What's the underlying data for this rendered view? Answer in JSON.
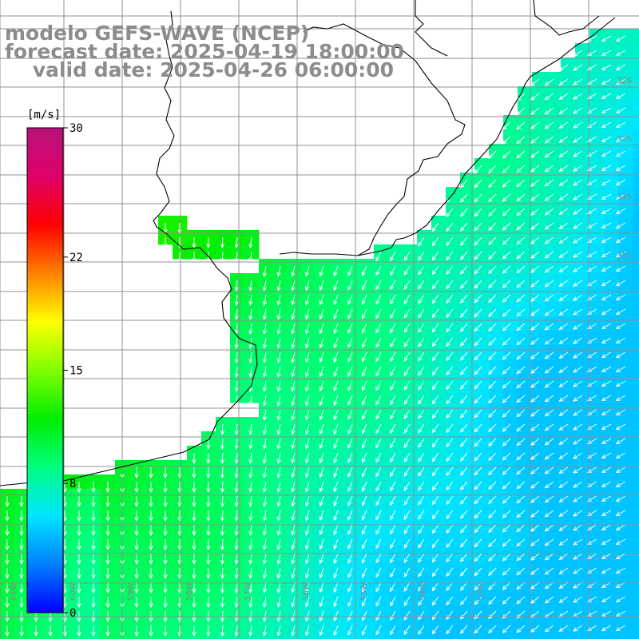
{
  "title": {
    "line1": "modelo GEFS-WAVE (NCEP)",
    "line2": "forecast date: 2025-04-19 18:00:00",
    "line3": "    valid date: 2025-04-26 06:00:00"
  },
  "colorbar": {
    "unit": "[m/s]",
    "min": 0,
    "max": 30,
    "ticks": [
      {
        "value": 30,
        "label": "30"
      },
      {
        "value": 22,
        "label": "22"
      },
      {
        "value": 15,
        "label": "15"
      },
      {
        "value": 8,
        "label": "8"
      },
      {
        "value": 0,
        "label": "0"
      }
    ],
    "colors": [
      "#0000ff",
      "#0080ff",
      "#00e5ff",
      "#00ff80",
      "#00ee00",
      "#80ff00",
      "#ffff00",
      "#ff8000",
      "#ff0000",
      "#e0006a",
      "#b8127a"
    ]
  },
  "axes": {
    "lat_labels": [
      "32S",
      "33S",
      "34S",
      "35S"
    ],
    "lon_labels": [
      "61W",
      "60W",
      "59W",
      "58W",
      "57W",
      "56W",
      "55W",
      "54W",
      "53W"
    ]
  },
  "field": {
    "variable": "wind speed",
    "arrow_color": "#ffffff",
    "coast_color": "#000000",
    "grid_color": "#909090"
  }
}
